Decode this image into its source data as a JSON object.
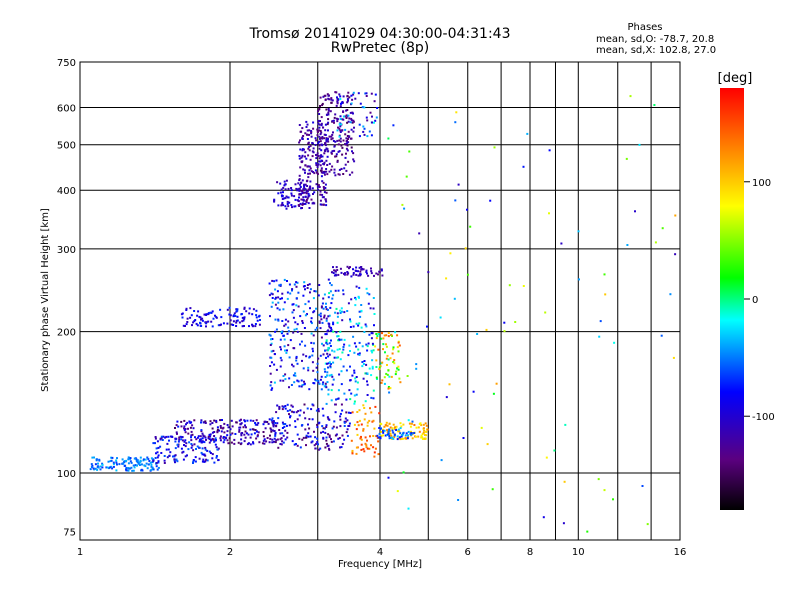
{
  "chart_data": {
    "type": "scatter",
    "title": "Tromsø 20141029 04:30:00-04:31:43",
    "subtitle": "RwPretec (8p)",
    "xlabel": "Frequency [MHz]",
    "ylabel": "Stationary phase Virtual Height [km]",
    "x_scale": "log",
    "y_scale": "log",
    "xlim": [
      1,
      16
    ],
    "ylim": [
      72,
      750
    ],
    "x_ticks": [
      1,
      2,
      4,
      6,
      8,
      10,
      16
    ],
    "y_ticks": [
      75,
      100,
      200,
      300,
      400,
      500,
      600,
      750
    ],
    "grid": true,
    "phases_info": {
      "heading": "Phases",
      "line_o": "mean, sd,O: -78.7, 20.8",
      "line_x": "mean, sd,X: 102.8, 27.0"
    },
    "colorbar": {
      "label": "[deg]",
      "range": [
        -180,
        180
      ],
      "ticks": [
        -100,
        0,
        100
      ],
      "colors": [
        "#000000",
        "#5b0080",
        "#0000ff",
        "#00ffff",
        "#00ff00",
        "#ffff00",
        "#ff8000",
        "#ff0000"
      ]
    },
    "clusters": [
      {
        "x": [
          2.45,
          2.9
        ],
        "y": [
          365,
          420
        ],
        "n": 90,
        "phase": -105,
        "ps": 20
      },
      {
        "x": [
          2.75,
          3.15
        ],
        "y": [
          370,
          560
        ],
        "n": 210,
        "phase": -115,
        "ps": 25
      },
      {
        "x": [
          3.0,
          3.55
        ],
        "y": [
          430,
          650
        ],
        "n": 200,
        "phase": -125,
        "ps": 25
      },
      {
        "x": [
          3.25,
          3.95
        ],
        "y": [
          520,
          650
        ],
        "n": 60,
        "phase": -75,
        "ps": 60
      },
      {
        "x": [
          1.05,
          1.45
        ],
        "y": [
          101,
          108
        ],
        "n": 130,
        "phase": -50,
        "ps": 20
      },
      {
        "x": [
          1.4,
          1.9
        ],
        "y": [
          105,
          120
        ],
        "n": 140,
        "phase": -90,
        "ps": 35
      },
      {
        "x": [
          1.55,
          2.5
        ],
        "y": [
          115,
          130
        ],
        "n": 200,
        "phase": -110,
        "ps": 40
      },
      {
        "x": [
          2.4,
          3.5
        ],
        "y": [
          112,
          140
        ],
        "n": 180,
        "phase": -105,
        "ps": 45
      },
      {
        "x": [
          3.5,
          4.0
        ],
        "y": [
          108,
          140
        ],
        "n": 60,
        "phase": 130,
        "ps": 35
      },
      {
        "x": [
          1.6,
          2.3
        ],
        "y": [
          205,
          225
        ],
        "n": 110,
        "phase": -90,
        "ps": 25
      },
      {
        "x": [
          2.4,
          3.2
        ],
        "y": [
          150,
          260
        ],
        "n": 260,
        "phase": -80,
        "ps": 50
      },
      {
        "x": [
          3.1,
          3.9
        ],
        "y": [
          140,
          250
        ],
        "n": 200,
        "phase": -55,
        "ps": 55
      },
      {
        "x": [
          3.2,
          4.05
        ],
        "y": [
          262,
          275
        ],
        "n": 60,
        "phase": -110,
        "ps": 20
      },
      {
        "x": [
          3.9,
          4.4
        ],
        "y": [
          150,
          200
        ],
        "n": 70,
        "phase": 60,
        "ps": 90
      },
      {
        "x": [
          4.0,
          5.0
        ],
        "y": [
          118,
          128
        ],
        "n": 90,
        "phase": 105,
        "ps": 30
      },
      {
        "x": [
          3.9,
          4.7
        ],
        "y": [
          118,
          125
        ],
        "n": 50,
        "phase": -55,
        "ps": 25
      },
      {
        "x": [
          4.0,
          16.0
        ],
        "y": [
          75,
          650
        ],
        "n": 90,
        "phase": 0,
        "ps": 120
      }
    ]
  }
}
